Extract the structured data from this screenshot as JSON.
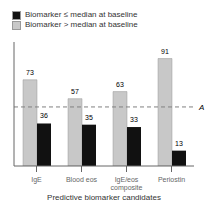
{
  "chart_data": {
    "type": "bar",
    "categories": [
      "IgE",
      "Blood eos",
      "IgE/eos\ncomposite",
      "Periostin"
    ],
    "xlabel": "Predictive biomarker candidates",
    "series": [
      {
        "name": "Biomarker > median at baseline",
        "color": "#c8c8c8",
        "values": [
          73,
          57,
          63,
          91
        ]
      },
      {
        "name": "Biomarker ≤ median at baseline",
        "color": "#111111",
        "values": [
          36,
          35,
          33,
          13
        ]
      }
    ],
    "ylim": [
      0,
      105
    ],
    "tick_labels": "x",
    "data_labels": true,
    "legend": "upper left",
    "annotations": [
      {
        "text": "A",
        "y": 50
      }
    ]
  }
}
